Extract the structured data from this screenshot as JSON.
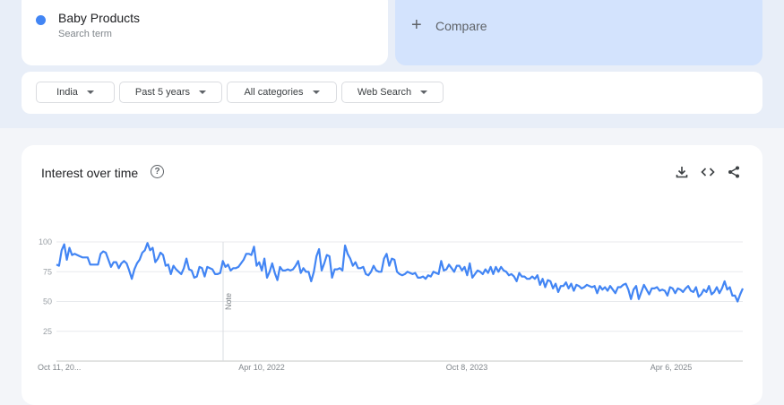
{
  "search_term": {
    "label": "Baby Products",
    "sublabel": "Search term",
    "color": "#4285f4"
  },
  "compare": {
    "icon": "plus-icon",
    "label": "Compare"
  },
  "filters": [
    {
      "label": "India"
    },
    {
      "label": "Past 5 years"
    },
    {
      "label": "All categories"
    },
    {
      "label": "Web Search"
    }
  ],
  "panel": {
    "title": "Interest over time",
    "help_icon": "help-circle-icon",
    "actions": [
      "download-icon",
      "embed-code-icon",
      "share-icon"
    ]
  },
  "chart_data": {
    "type": "line",
    "title": "",
    "xlabel": "",
    "ylabel": "",
    "ylim": [
      0,
      100
    ],
    "y_ticks": [
      "100",
      "75",
      "50",
      "25"
    ],
    "x_tick_labels": [
      "Oct 11, 20...",
      "Apr 10, 2022",
      "Oct 8, 2023",
      "Apr 6, 2025"
    ],
    "annotation": "Note",
    "grid": true,
    "color": "#4285f4",
    "series": [
      {
        "values": [
          81,
          80,
          93,
          98,
          85,
          95,
          89,
          90,
          89,
          88,
          87,
          87,
          87,
          81,
          81,
          81,
          81,
          90,
          92,
          91,
          85,
          79,
          83,
          83,
          78,
          82,
          84,
          82,
          76,
          69,
          77,
          82,
          85,
          91,
          93,
          99,
          93,
          95,
          83,
          86,
          91,
          89,
          80,
          81,
          73,
          80,
          77,
          75,
          73,
          78,
          86,
          77,
          76,
          70,
          71,
          79,
          78,
          71,
          79,
          78,
          77,
          73,
          73,
          74,
          84,
          79,
          81,
          76,
          78,
          78,
          79,
          82,
          85,
          90,
          90,
          89,
          96,
          80,
          83,
          76,
          86,
          70,
          75,
          82,
          74,
          68,
          79,
          76,
          76,
          77,
          76,
          77,
          80,
          84,
          74,
          78,
          75,
          75,
          67,
          75,
          88,
          94,
          76,
          82,
          89,
          88,
          70,
          77,
          77,
          78,
          76,
          97,
          90,
          86,
          80,
          83,
          78,
          78,
          79,
          73,
          72,
          75,
          80,
          76,
          75,
          75,
          86,
          90,
          80,
          86,
          85,
          75,
          73,
          72,
          73,
          75,
          74,
          73,
          74,
          70,
          70,
          71,
          69,
          72,
          71,
          75,
          74,
          73,
          84,
          76,
          77,
          81,
          78,
          75,
          80,
          80,
          76,
          79,
          72,
          82,
          70,
          73,
          76,
          75,
          73,
          77,
          74,
          79,
          73,
          79,
          75,
          79,
          76,
          75,
          72,
          73,
          71,
          67,
          74,
          71,
          71,
          69,
          69,
          71,
          69,
          72,
          64,
          69,
          62,
          68,
          67,
          61,
          65,
          58,
          63,
          63,
          66,
          61,
          65,
          59,
          64,
          63,
          61,
          62,
          64,
          63,
          62,
          63,
          57,
          63,
          60,
          62,
          59,
          63,
          60,
          57,
          62,
          62,
          64,
          65,
          60,
          52,
          60,
          63,
          52,
          58,
          64,
          60,
          56,
          61,
          61,
          62,
          59,
          60,
          59,
          55,
          62,
          61,
          57,
          61,
          60,
          58,
          61,
          63,
          59,
          58,
          62,
          54,
          56,
          60,
          58,
          63,
          56,
          58,
          62,
          57,
          61,
          67,
          60,
          62,
          55,
          55,
          50,
          56,
          61
        ]
      }
    ]
  }
}
